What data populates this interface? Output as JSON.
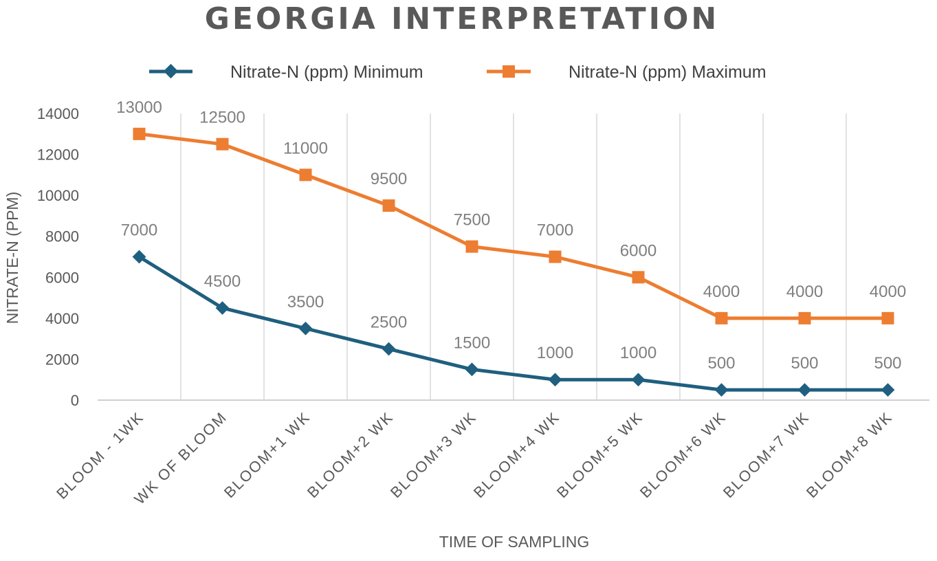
{
  "chart_data": {
    "type": "line",
    "title": "GEORGIA INTERPRETATION",
    "xlabel": "TIME OF SAMPLING",
    "ylabel": "NITRATE-N (PPM)",
    "categories": [
      "BLOOM - 1WK",
      "WK OF BLOOM",
      "BLOOM+1 WK",
      "BLOOM+2 WK",
      "BLOOM+3 WK",
      "BLOOM+4 WK",
      "BLOOM+5 WK",
      "BLOOM+6 WK",
      "BLOOM+7 WK",
      "BLOOM+8 WK"
    ],
    "ylim": [
      0,
      14000
    ],
    "yticks": [
      "0",
      "2000",
      "4000",
      "6000",
      "8000",
      "10000",
      "12000",
      "14000"
    ],
    "grid": "vertical",
    "legend_position": "top",
    "series": [
      {
        "name": "Nitrate-N (ppm) Minimum",
        "color": "#1f5f7f",
        "marker": "diamond",
        "values": [
          7000,
          4500,
          3500,
          2500,
          1500,
          1000,
          1000,
          500,
          500,
          500
        ],
        "labels": [
          "7000",
          "4500",
          "3500",
          "2500",
          "1500",
          "1000",
          "1000",
          "500",
          "500",
          "500"
        ]
      },
      {
        "name": "Nitrate-N (ppm) Maximum",
        "color": "#ed7d31",
        "marker": "square",
        "values": [
          13000,
          12500,
          11000,
          9500,
          7500,
          7000,
          6000,
          4000,
          4000,
          4000
        ],
        "labels": [
          "13000",
          "12500",
          "11000",
          "9500",
          "7500",
          "7000",
          "6000",
          "4000",
          "4000",
          "4000"
        ]
      }
    ]
  }
}
